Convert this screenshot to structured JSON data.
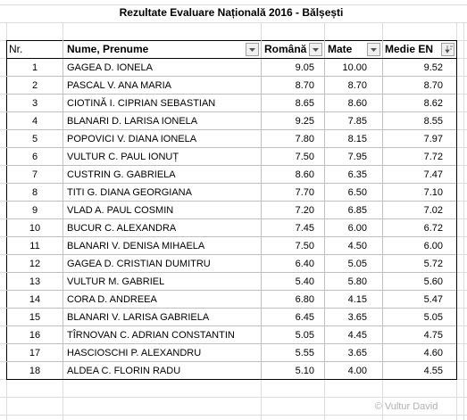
{
  "title": "Rezultate Evaluare Națională 2016 - Bălșești",
  "table": {
    "headers": [
      "Nr.",
      "Nume, Prenume",
      "Română",
      "Mate",
      "Medie EN"
    ],
    "rows": [
      [
        "1",
        "GAGEA D. IONELA",
        "9.05",
        "10.00",
        "9.52"
      ],
      [
        "2",
        "PASCAL V. ANA MARIA",
        "8.70",
        "8.70",
        "8.70"
      ],
      [
        "3",
        "CIOTINĂ I. CIPRIAN SEBASTIAN",
        "8.65",
        "8.60",
        "8.62"
      ],
      [
        "4",
        "BLANARI D. LARISA IONELA",
        "9.25",
        "7.85",
        "8.55"
      ],
      [
        "5",
        "POPOVICI V. DIANA IONELA",
        "7.80",
        "8.15",
        "7.97"
      ],
      [
        "6",
        "VULTUR C. PAUL IONUȚ",
        "7.50",
        "7.95",
        "7.72"
      ],
      [
        "7",
        "CUSTRIN G. GABRIELA",
        "8.60",
        "6.35",
        "7.47"
      ],
      [
        "8",
        "TITI G. DIANA GEORGIANA",
        "7.70",
        "6.50",
        "7.10"
      ],
      [
        "9",
        "VLAD A. PAUL COSMIN",
        "7.20",
        "6.85",
        "7.02"
      ],
      [
        "10",
        "BUCUR C. ALEXANDRA",
        "7.45",
        "6.00",
        "6.72"
      ],
      [
        "11",
        "BLANARI V. DENISA MIHAELA",
        "7.50",
        "4.50",
        "6.00"
      ],
      [
        "12",
        "GAGEA D. CRISTIAN DUMITRU",
        "6.40",
        "5.05",
        "5.72"
      ],
      [
        "13",
        "VULTUR M. GABRIEL",
        "5.40",
        "5.80",
        "5.60"
      ],
      [
        "14",
        "CORA D. ANDREEA",
        "6.80",
        "4.15",
        "5.47"
      ],
      [
        "15",
        "BLANARI V. LARISA GABRIELA",
        "6.45",
        "3.65",
        "5.05"
      ],
      [
        "16",
        "TÎRNOVAN C. ADRIAN CONSTANTIN",
        "5.05",
        "4.45",
        "4.75"
      ],
      [
        "17",
        "HASCIOSCHI P. ALEXANDRU",
        "5.55",
        "3.65",
        "4.60"
      ],
      [
        "18",
        "ALDEA C. FLORIN RADU",
        "5.10",
        "4.00",
        "4.55"
      ]
    ]
  },
  "watermark": "© Vultur David"
}
